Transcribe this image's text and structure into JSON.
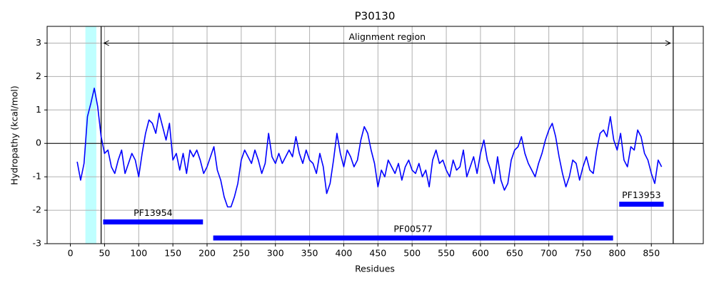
{
  "chart_data": {
    "type": "line",
    "title": "P30130",
    "xlabel": "Residues",
    "ylabel": "Hydropathy (kcal/mol)",
    "xlim": [
      -34,
      926
    ],
    "ylim": [
      -3,
      3.5
    ],
    "xticks": [
      0,
      50,
      100,
      150,
      200,
      250,
      300,
      350,
      400,
      450,
      500,
      550,
      600,
      650,
      700,
      750,
      800,
      850
    ],
    "yticks": [
      -3,
      -2,
      -1,
      0,
      1,
      2,
      3
    ],
    "grid": true,
    "x": [
      10,
      15,
      20,
      25,
      30,
      35,
      40,
      45,
      50,
      55,
      60,
      65,
      70,
      75,
      80,
      85,
      90,
      95,
      100,
      105,
      110,
      115,
      120,
      125,
      130,
      135,
      140,
      145,
      150,
      155,
      160,
      165,
      170,
      175,
      180,
      185,
      190,
      195,
      200,
      205,
      210,
      215,
      220,
      225,
      230,
      235,
      240,
      245,
      250,
      255,
      260,
      265,
      270,
      275,
      280,
      285,
      290,
      295,
      300,
      305,
      310,
      315,
      320,
      325,
      330,
      335,
      340,
      345,
      350,
      355,
      360,
      365,
      370,
      375,
      380,
      385,
      390,
      395,
      400,
      405,
      410,
      415,
      420,
      425,
      430,
      435,
      440,
      445,
      450,
      455,
      460,
      465,
      470,
      475,
      480,
      485,
      490,
      495,
      500,
      505,
      510,
      515,
      520,
      525,
      530,
      535,
      540,
      545,
      550,
      555,
      560,
      565,
      570,
      575,
      580,
      585,
      590,
      595,
      600,
      605,
      610,
      615,
      620,
      625,
      630,
      635,
      640,
      645,
      650,
      655,
      660,
      665,
      670,
      675,
      680,
      685,
      690,
      695,
      700,
      705,
      710,
      715,
      720,
      725,
      730,
      735,
      740,
      745,
      750,
      755,
      760,
      765,
      770,
      775,
      780,
      785,
      790,
      795,
      800,
      805,
      810,
      815,
      820,
      825,
      830,
      835,
      840,
      845,
      850,
      855,
      860,
      865
    ],
    "values": [
      -0.55,
      -1.1,
      -0.6,
      0.8,
      1.2,
      1.65,
      1.1,
      0.2,
      -0.3,
      -0.2,
      -0.7,
      -0.9,
      -0.5,
      -0.2,
      -0.9,
      -0.6,
      -0.3,
      -0.5,
      -1.0,
      -0.3,
      0.3,
      0.7,
      0.6,
      0.3,
      0.9,
      0.5,
      0.1,
      0.6,
      -0.5,
      -0.3,
      -0.8,
      -0.3,
      -0.9,
      -0.2,
      -0.4,
      -0.2,
      -0.5,
      -0.9,
      -0.7,
      -0.4,
      -0.1,
      -0.8,
      -1.1,
      -1.6,
      -1.9,
      -1.9,
      -1.6,
      -1.2,
      -0.5,
      -0.2,
      -0.4,
      -0.6,
      -0.2,
      -0.5,
      -0.9,
      -0.6,
      0.3,
      -0.4,
      -0.6,
      -0.3,
      -0.6,
      -0.4,
      -0.2,
      -0.4,
      0.2,
      -0.3,
      -0.6,
      -0.2,
      -0.5,
      -0.6,
      -0.9,
      -0.3,
      -0.7,
      -1.5,
      -1.2,
      -0.5,
      0.3,
      -0.3,
      -0.7,
      -0.2,
      -0.4,
      -0.7,
      -0.5,
      0.1,
      0.5,
      0.3,
      -0.2,
      -0.6,
      -1.3,
      -0.8,
      -1.0,
      -0.5,
      -0.7,
      -0.9,
      -0.6,
      -1.1,
      -0.7,
      -0.5,
      -0.8,
      -0.9,
      -0.6,
      -1.0,
      -0.8,
      -1.3,
      -0.5,
      -0.2,
      -0.6,
      -0.5,
      -0.8,
      -1.0,
      -0.5,
      -0.8,
      -0.7,
      -0.2,
      -1.0,
      -0.7,
      -0.4,
      -0.9,
      -0.3,
      0.1,
      -0.5,
      -0.8,
      -1.2,
      -0.4,
      -1.1,
      -1.4,
      -1.2,
      -0.5,
      -0.2,
      -0.1,
      0.2,
      -0.3,
      -0.6,
      -0.8,
      -1.0,
      -0.6,
      -0.3,
      0.1,
      0.4,
      0.6,
      0.2,
      -0.4,
      -0.9,
      -1.3,
      -1.0,
      -0.5,
      -0.6,
      -1.1,
      -0.7,
      -0.4,
      -0.8,
      -0.9,
      -0.2,
      0.3,
      0.4,
      0.2,
      0.8,
      0.1,
      -0.2,
      0.3,
      -0.5,
      -0.7,
      -0.1,
      -0.2,
      0.4,
      0.2,
      -0.3,
      -0.5,
      -0.9,
      -1.2,
      -0.5,
      -0.7
    ],
    "color": "#0000ff",
    "hline": 0,
    "highlight": {
      "range": [
        22,
        38
      ],
      "color": "#bfffff"
    },
    "vlines": [
      45,
      882
    ],
    "annotation": {
      "text": "Alignment region",
      "range": [
        45,
        882
      ],
      "y": 3
    },
    "domains": [
      {
        "name": "PF13954",
        "start": 48,
        "end": 194,
        "y": -2.35
      },
      {
        "name": "PF00577",
        "start": 209,
        "end": 794,
        "y": -2.83
      },
      {
        "name": "PF13953",
        "start": 803,
        "end": 868,
        "y": -1.82
      }
    ],
    "domain_color": "#0000ff"
  }
}
